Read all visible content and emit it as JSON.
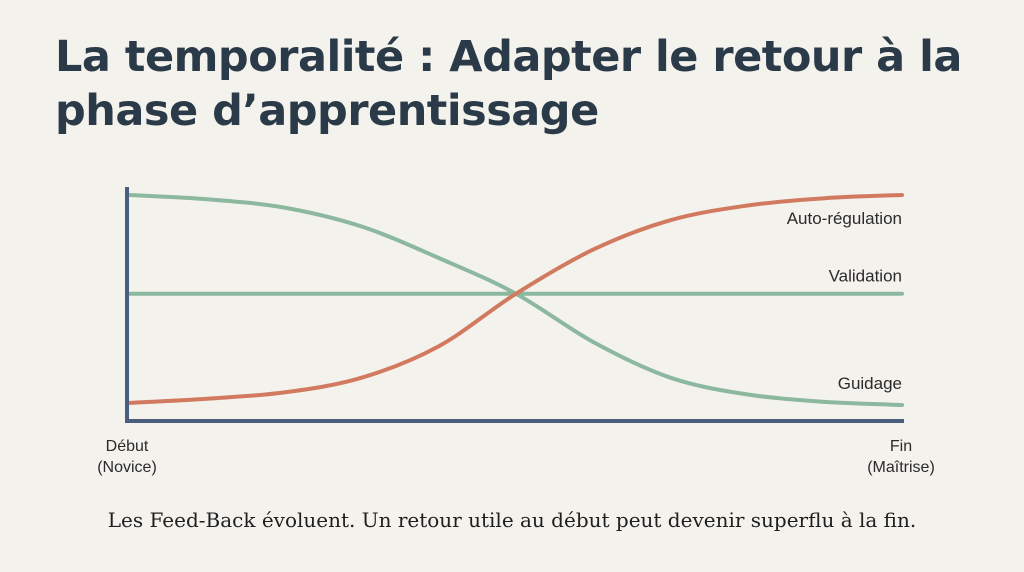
{
  "title": "La temporalité : Adapter le retour à la phase d’apprentissage",
  "caption": "Les Feed-Back évoluent. Un retour utile au début peut devenir superflu à la fin.",
  "chart_data": {
    "type": "line",
    "x": [
      0,
      0.1,
      0.2,
      0.3,
      0.4,
      0.5,
      0.6,
      0.7,
      0.8,
      0.9,
      1.0
    ],
    "xlim": [
      0,
      1
    ],
    "ylim": [
      0,
      1
    ],
    "x_start_label": [
      "Début",
      "(Novice)"
    ],
    "x_end_label": [
      "Fin",
      "(Maîtrise)"
    ],
    "grid": false,
    "series": [
      {
        "name": "Auto-régulation",
        "color": "#d27a60",
        "values": [
          0.01,
          0.03,
          0.06,
          0.13,
          0.28,
          0.53,
          0.74,
          0.88,
          0.95,
          0.985,
          1.0
        ]
      },
      {
        "name": "Validation",
        "color": "#8db8a0",
        "values": [
          0.53,
          0.53,
          0.53,
          0.53,
          0.53,
          0.53,
          0.53,
          0.53,
          0.53,
          0.53,
          0.53
        ]
      },
      {
        "name": "Guidage",
        "color": "#8db8a0",
        "values": [
          1.0,
          0.98,
          0.94,
          0.85,
          0.7,
          0.53,
          0.3,
          0.13,
          0.05,
          0.015,
          0.0
        ]
      }
    ]
  }
}
